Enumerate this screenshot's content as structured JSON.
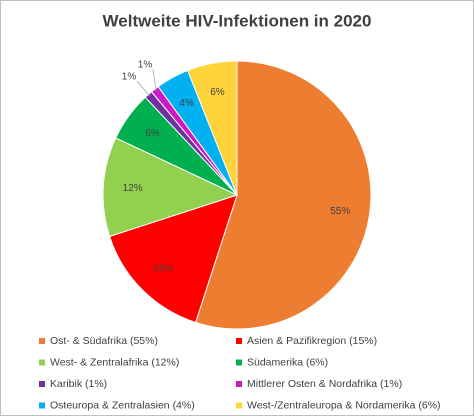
{
  "chart_data": {
    "type": "pie",
    "title": "Weltweite HIV-Infektionen in 2020",
    "categories": [
      "Ost- & Südafrika (55%)",
      "Asien & Pazifikregion (15%)",
      "West- & Zentralafrika (12%)",
      "Südamerika (6%)",
      "Karibik (1%)",
      "Mittlerer Osten & Nordafrika (1%)",
      "Osteuropa & Zentralasien (4%)",
      "West-/Zentraleuropa & Nordamerika (6%)"
    ],
    "values": [
      55,
      15,
      12,
      6,
      1,
      1,
      4,
      6
    ],
    "value_labels": [
      "55%",
      "15%",
      "12%",
      "6%",
      "1%",
      "1%",
      "4%",
      "6%"
    ],
    "colors": [
      "#ED7D31",
      "#FF0000",
      "#92D050",
      "#00B050",
      "#7030A0",
      "#CC19C8",
      "#00B0F0",
      "#FFD43B"
    ]
  }
}
